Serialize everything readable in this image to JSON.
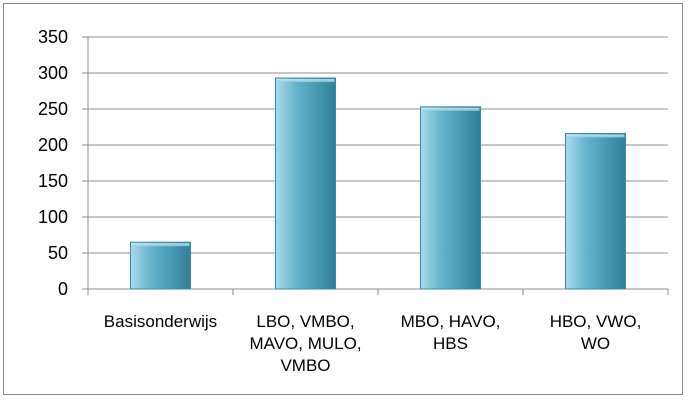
{
  "chart_data": {
    "type": "bar",
    "categories": [
      [
        "Basisonderwijs"
      ],
      [
        "LBO, VMBO,",
        "MAVO, MULO,",
        "VMBO"
      ],
      [
        "MBO, HAVO,",
        "HBS"
      ],
      [
        "HBO, VWO,",
        "WO"
      ]
    ],
    "values": [
      65,
      293,
      253,
      216
    ],
    "ylim": [
      0,
      350
    ],
    "yticks": [
      0,
      50,
      100,
      150,
      200,
      250,
      300,
      350
    ],
    "grid": true,
    "legend": "none",
    "title": "",
    "xlabel": "",
    "ylabel": "",
    "colors": {
      "bar_light": "#a9dbea",
      "bar_mid": "#64b3cc",
      "bar_dark": "#2f7f99",
      "bar_stroke": "#3d8aa3",
      "grid": "#8c8c8c",
      "axis": "#8c8c8c"
    }
  }
}
